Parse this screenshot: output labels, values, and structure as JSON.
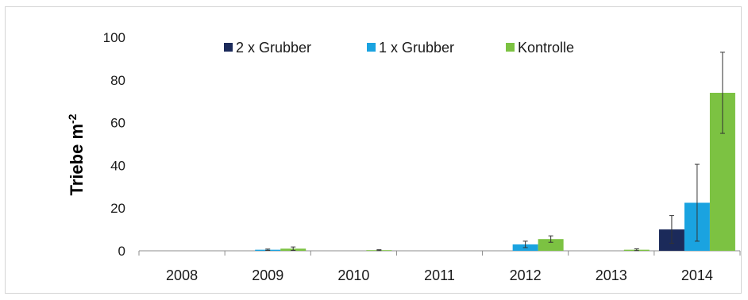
{
  "chart_data": {
    "type": "bar",
    "title": "",
    "ylabel": "Triebe m",
    "ylabel_superscript": "-2",
    "categories": [
      "2008",
      "2009",
      "2010",
      "2011",
      "2012",
      "2013",
      "2014"
    ],
    "ylim": [
      0,
      100
    ],
    "yticks": [
      "0",
      "20",
      "40",
      "60",
      "80",
      "100"
    ],
    "legend_position": "top",
    "series": [
      {
        "name": "2 x Grubber",
        "color": "#1b2a5a",
        "values": [
          0,
          0,
          0,
          0,
          0,
          0,
          10
        ],
        "errors": [
          0,
          0,
          0,
          0,
          0,
          0,
          6.5
        ]
      },
      {
        "name": "1 x Grubber",
        "color": "#1aa3e0",
        "values": [
          0,
          0.5,
          0,
          0,
          3,
          0,
          22.5
        ],
        "errors": [
          0,
          0.3,
          0,
          0,
          1.5,
          0,
          18
        ]
      },
      {
        "name": "Kontrolle",
        "color": "#7cc242",
        "values": [
          0,
          1,
          0.3,
          0,
          5.5,
          0.5,
          74
        ],
        "errors": [
          0,
          0.8,
          0.2,
          0,
          1.5,
          0.4,
          19
        ]
      }
    ]
  }
}
